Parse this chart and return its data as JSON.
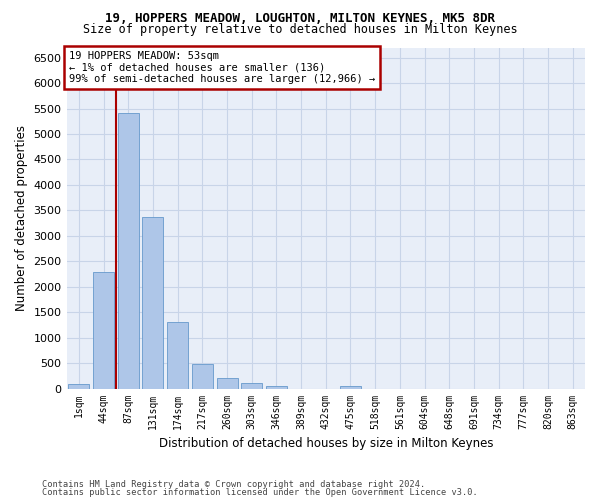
{
  "title1": "19, HOPPERS MEADOW, LOUGHTON, MILTON KEYNES, MK5 8DR",
  "title2": "Size of property relative to detached houses in Milton Keynes",
  "xlabel": "Distribution of detached houses by size in Milton Keynes",
  "ylabel": "Number of detached properties",
  "categories": [
    "1sqm",
    "44sqm",
    "87sqm",
    "131sqm",
    "174sqm",
    "217sqm",
    "260sqm",
    "303sqm",
    "346sqm",
    "389sqm",
    "432sqm",
    "475sqm",
    "518sqm",
    "561sqm",
    "604sqm",
    "648sqm",
    "691sqm",
    "734sqm",
    "777sqm",
    "820sqm",
    "863sqm"
  ],
  "values": [
    80,
    2280,
    5420,
    3380,
    1310,
    475,
    210,
    100,
    60,
    0,
    0,
    60,
    0,
    0,
    0,
    0,
    0,
    0,
    0,
    0,
    0
  ],
  "bar_color": "#aec6e8",
  "bar_edgecolor": "#6699cc",
  "vline_color": "#aa0000",
  "vline_x": 1.5,
  "annotation_text": "19 HOPPERS MEADOW: 53sqm\n← 1% of detached houses are smaller (136)\n99% of semi-detached houses are larger (12,966) →",
  "annotation_box_edgecolor": "#aa0000",
  "annotation_box_facecolor": "white",
  "ylim": [
    0,
    6700
  ],
  "yticks": [
    0,
    500,
    1000,
    1500,
    2000,
    2500,
    3000,
    3500,
    4000,
    4500,
    5000,
    5500,
    6000,
    6500
  ],
  "grid_color": "#c8d4e8",
  "background_color": "#e8eef8",
  "footer1": "Contains HM Land Registry data © Crown copyright and database right 2024.",
  "footer2": "Contains public sector information licensed under the Open Government Licence v3.0."
}
